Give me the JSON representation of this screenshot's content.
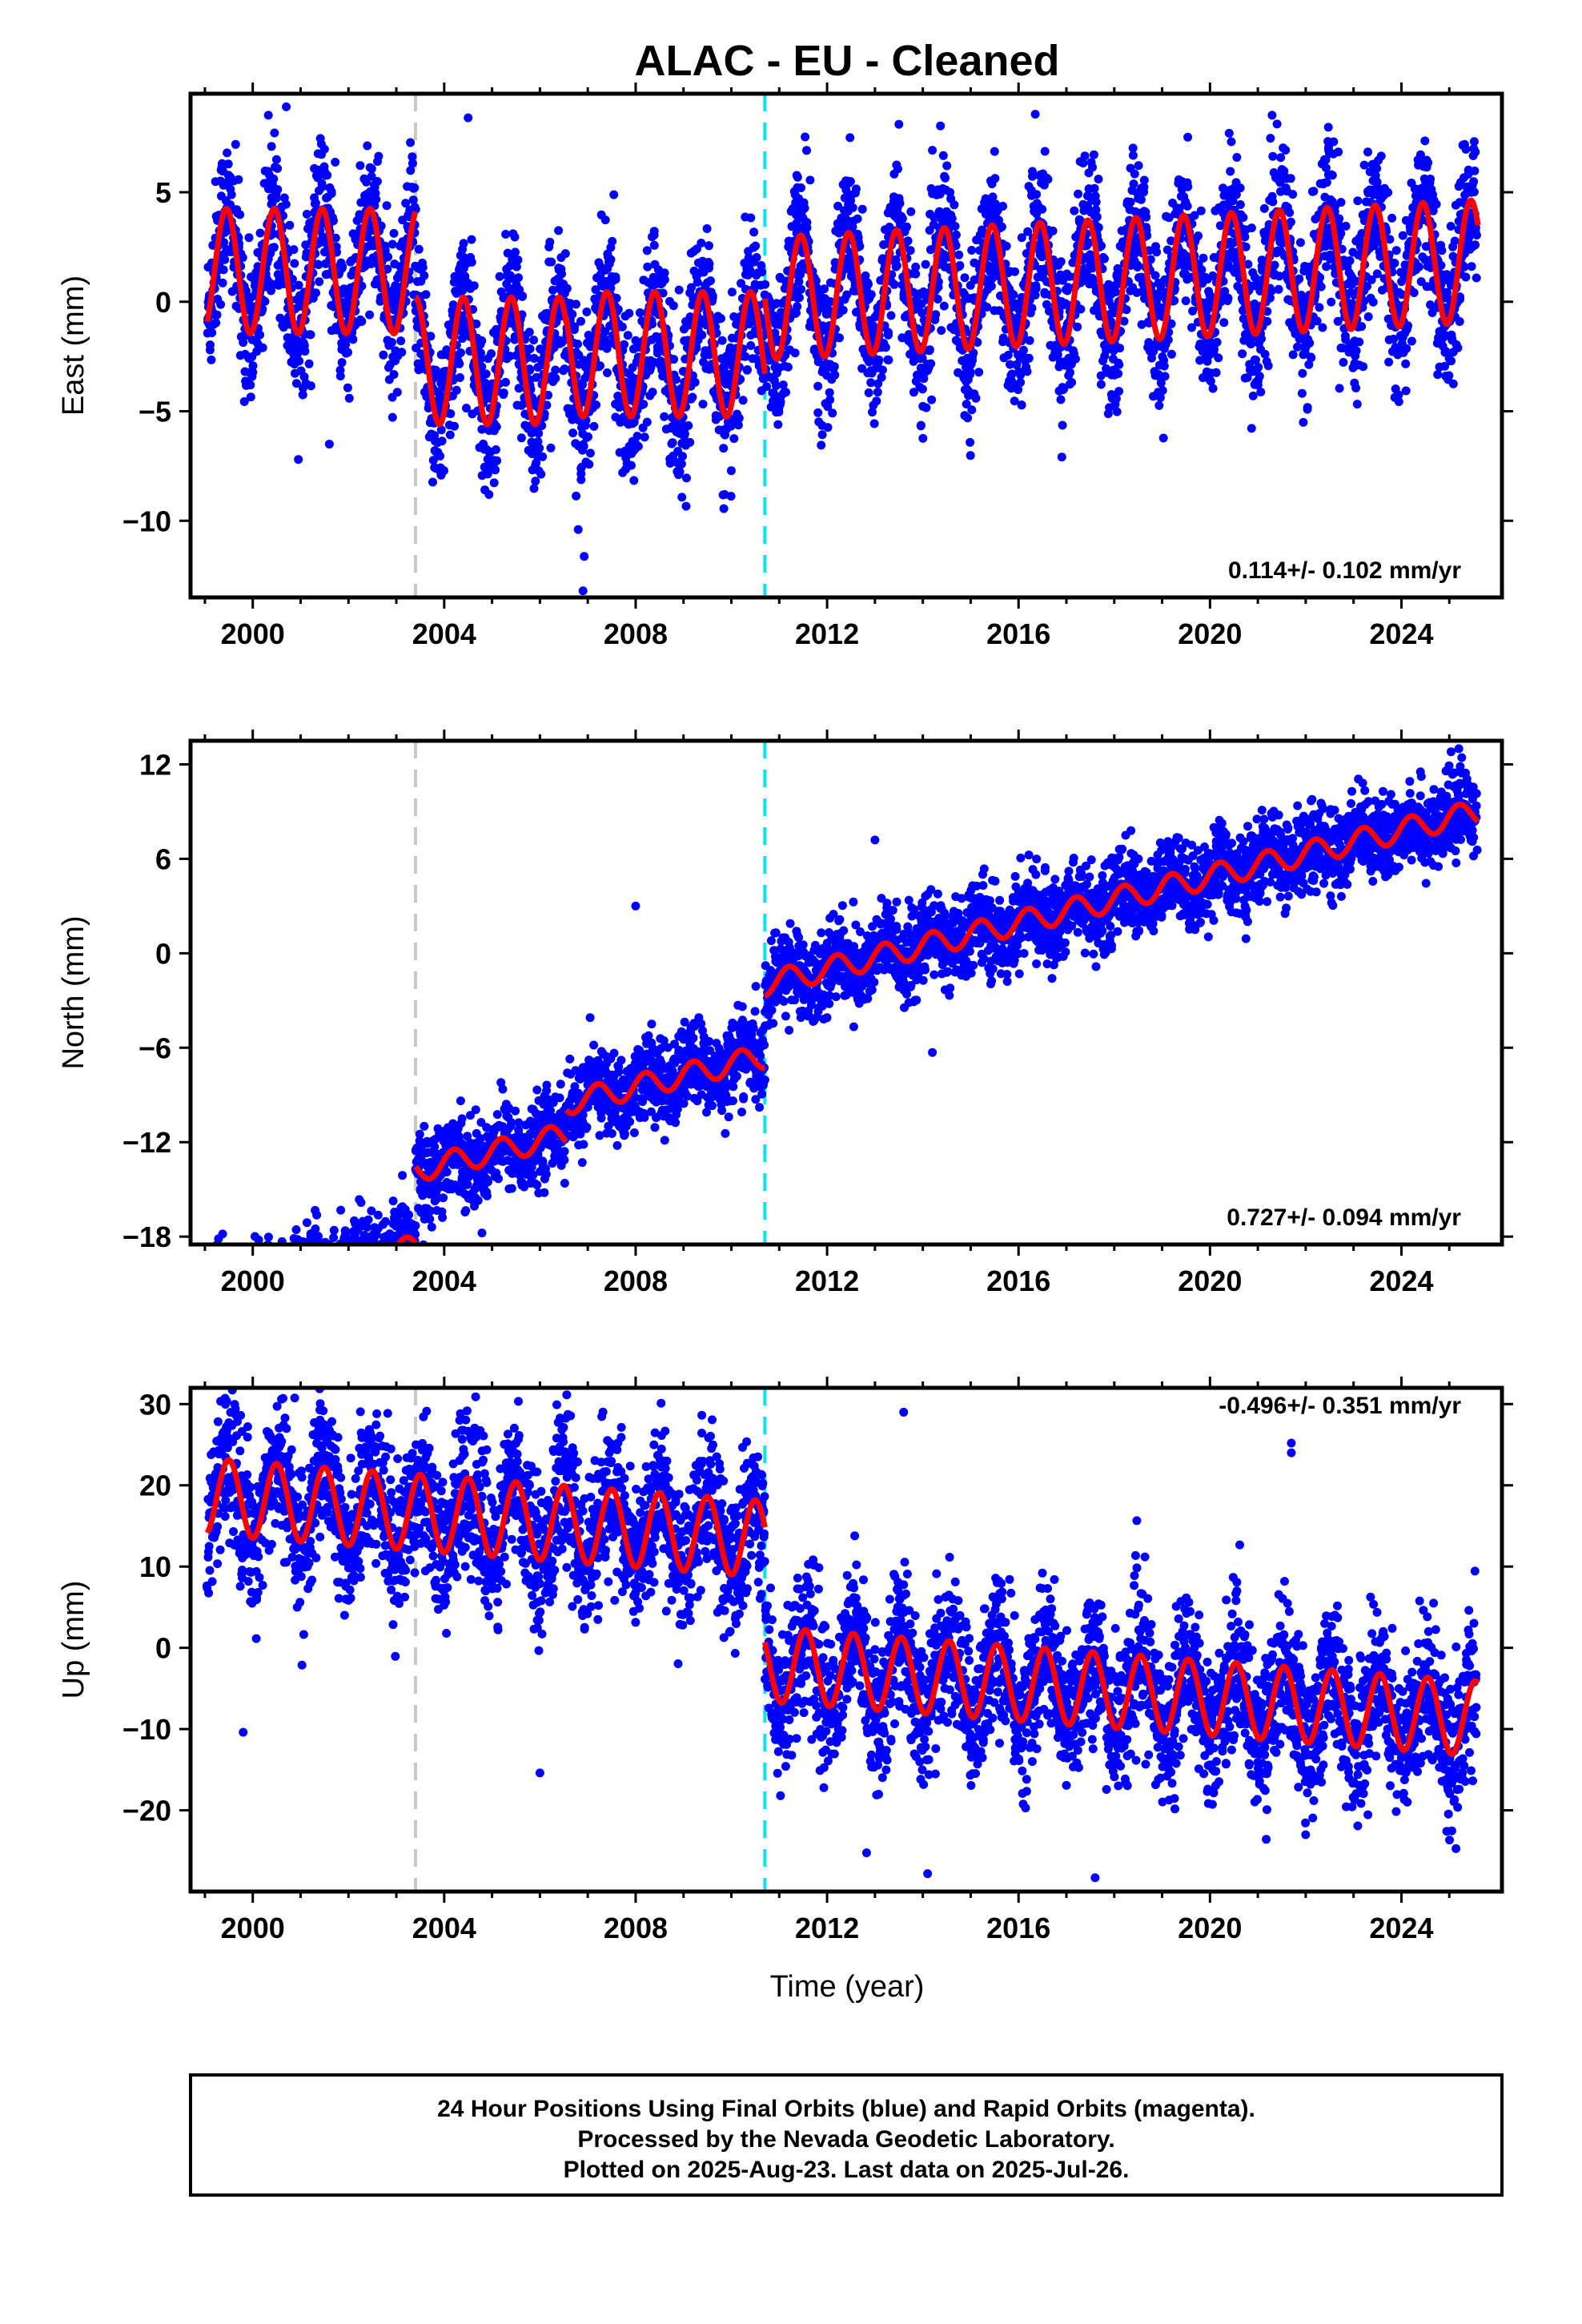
{
  "title": "ALAC  - EU - Cleaned",
  "xlabel": "Time (year)",
  "footer": [
    "24 Hour Positions Using Final Orbits (blue) and Rapid Orbits (magenta).",
    "Processed by the Nevada Geodetic Laboratory.",
    "Plotted on 2025-Aug-23. Last data on 2025-Jul-26."
  ],
  "colors": {
    "final_orbits": "#0000ff",
    "model_fit": "#ff0000",
    "antenna_change_line": "#c8c8c8",
    "equipment_change_line": "#00e5ee",
    "frame": "#000000"
  },
  "chart_data": [
    {
      "type": "scatter",
      "component": "east",
      "ylabel": "East (mm)",
      "rate": "0.114+/- 0.102 mm/yr",
      "xlim": [
        1998.7,
        2026.1
      ],
      "ylim": [
        -13.5,
        9.5
      ],
      "xticks": [
        2000,
        2004,
        2008,
        2012,
        2016,
        2020,
        2024
      ],
      "yticks": [
        5,
        0,
        -5,
        -10
      ],
      "vlines": [
        {
          "x": 2003.4,
          "color": "#c8c8c8"
        },
        {
          "x": 2010.7,
          "color": "#00e5ee"
        }
      ],
      "model_segments": [
        {
          "x_start": 1999.05,
          "x_end": 2003.4,
          "offset": 1.4,
          "slope": 0.0,
          "amplitude": 2.85,
          "phase_peak": 0.45
        },
        {
          "x_start": 2003.4,
          "x_end": 2006.55,
          "offset": -2.7,
          "slope": 0.0,
          "amplitude": 2.9,
          "phase_peak": 0.4
        },
        {
          "x_start": 2006.55,
          "x_end": 2010.7,
          "offset": -2.4,
          "slope": 0.0,
          "amplitude": 2.85,
          "phase_peak": 0.4
        },
        {
          "x_start": 2010.7,
          "x_end": 2025.6,
          "offset": 0.3,
          "slope": 0.114,
          "amplitude": 2.8,
          "phase_peak": 0.45
        }
      ],
      "scatter_sigma": 1.7,
      "outliers": [
        [
          2006.9,
          -13.2
        ],
        [
          2006.8,
          -10.4
        ],
        [
          2000.7,
          8.9
        ],
        [
          2013.5,
          8.1
        ],
        [
          2004.5,
          8.4
        ],
        [
          2001.6,
          -6.5
        ]
      ]
    },
    {
      "type": "scatter",
      "component": "north",
      "ylabel": "North (mm)",
      "rate": "0.727+/- 0.094 mm/yr",
      "xlim": [
        1998.7,
        2026.1
      ],
      "ylim": [
        -18.5,
        13.5
      ],
      "xticks": [
        2000,
        2004,
        2008,
        2012,
        2016,
        2020,
        2024
      ],
      "yticks": [
        12,
        6,
        0,
        -6,
        -12,
        -18
      ],
      "vlines": [
        {
          "x": 2003.4,
          "color": "#c8c8c8"
        },
        {
          "x": 2010.7,
          "color": "#00e5ee"
        }
      ],
      "model_segments": [
        {
          "x_start": 1999.05,
          "x_end": 2003.4,
          "offset": -12.2,
          "slope": 0.75,
          "amplitude": 0.75,
          "phase_peak": 0.2
        },
        {
          "x_start": 2003.4,
          "x_end": 2006.55,
          "offset": -7.6,
          "slope": 0.72,
          "amplitude": 0.75,
          "phase_peak": 0.2
        },
        {
          "x_start": 2006.55,
          "x_end": 2010.7,
          "offset": -5.6,
          "slope": 0.72,
          "amplitude": 0.75,
          "phase_peak": 0.2
        },
        {
          "x_start": 2010.7,
          "x_end": 2025.6,
          "offset": -1.0,
          "slope": 0.735,
          "amplitude": 0.75,
          "phase_peak": 0.2
        }
      ],
      "scatter_sigma": 1.3,
      "outliers": [
        [
          2001.7,
          -17.6
        ],
        [
          2025.2,
          13.0
        ],
        [
          2008.0,
          3.0
        ],
        [
          2013.0,
          7.2
        ],
        [
          2014.2,
          -6.3
        ],
        [
          2008.8,
          -10.6
        ]
      ]
    },
    {
      "type": "scatter",
      "component": "up",
      "ylabel": "Up (mm)",
      "rate": "-0.496+/- 0.351 mm/yr",
      "xlim": [
        1998.7,
        2026.1
      ],
      "ylim": [
        -30,
        32
      ],
      "xticks": [
        2000,
        2004,
        2008,
        2012,
        2016,
        2020,
        2024
      ],
      "yticks": [
        30,
        20,
        10,
        0,
        -10,
        -20
      ],
      "vlines": [
        {
          "x": 2003.4,
          "color": "#c8c8c8"
        },
        {
          "x": 2010.7,
          "color": "#00e5ee"
        }
      ],
      "model_segments": [
        {
          "x_start": 1999.05,
          "x_end": 2010.7,
          "offset": 12.8,
          "slope": -0.45,
          "amplitude": 4.7,
          "phase_peak": 0.5
        },
        {
          "x_start": 2010.7,
          "x_end": 2025.6,
          "offset": -2.6,
          "slope": -0.45,
          "amplitude": 4.6,
          "phase_peak": 0.55
        }
      ],
      "scatter_sigma": 4.5,
      "outliers": [
        [
          2021.7,
          25.2
        ],
        [
          2021.7,
          24.0
        ],
        [
          2013.6,
          29.0
        ],
        [
          2000.6,
          30.6
        ],
        [
          2014.1,
          -27.8
        ],
        [
          2017.6,
          -28.3
        ],
        [
          2006.0,
          -15.4
        ],
        [
          1999.8,
          -10.4
        ]
      ]
    }
  ]
}
